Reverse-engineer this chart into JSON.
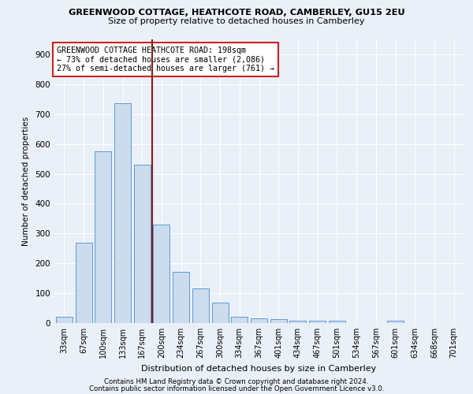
{
  "title1": "GREENWOOD COTTAGE, HEATHCOTE ROAD, CAMBERLEY, GU15 2EU",
  "title2": "Size of property relative to detached houses in Camberley",
  "xlabel": "Distribution of detached houses by size in Camberley",
  "ylabel": "Number of detached properties",
  "bar_labels": [
    "33sqm",
    "67sqm",
    "100sqm",
    "133sqm",
    "167sqm",
    "200sqm",
    "234sqm",
    "267sqm",
    "300sqm",
    "334sqm",
    "367sqm",
    "401sqm",
    "434sqm",
    "467sqm",
    "501sqm",
    "534sqm",
    "567sqm",
    "601sqm",
    "634sqm",
    "668sqm",
    "701sqm"
  ],
  "bar_values": [
    22,
    270,
    575,
    735,
    530,
    330,
    172,
    115,
    68,
    20,
    15,
    12,
    9,
    8,
    8,
    0,
    0,
    8,
    0,
    0,
    0
  ],
  "bar_color": "#ccdcec",
  "bar_edge_color": "#5b9bd5",
  "vline_color": "#8b1a1a",
  "annotation_text": "GREENWOOD COTTAGE HEATHCOTE ROAD: 198sqm\n← 73% of detached houses are smaller (2,086)\n27% of semi-detached houses are larger (761) →",
  "annotation_box_color": "#ffffff",
  "annotation_box_edge": "#cc2222",
  "ylim": [
    0,
    950
  ],
  "yticks": [
    0,
    100,
    200,
    300,
    400,
    500,
    600,
    700,
    800,
    900
  ],
  "footnote1": "Contains HM Land Registry data © Crown copyright and database right 2024.",
  "footnote2": "Contains public sector information licensed under the Open Government Licence v3.0.",
  "bg_color": "#eaf0f8",
  "grid_color": "#ffffff"
}
